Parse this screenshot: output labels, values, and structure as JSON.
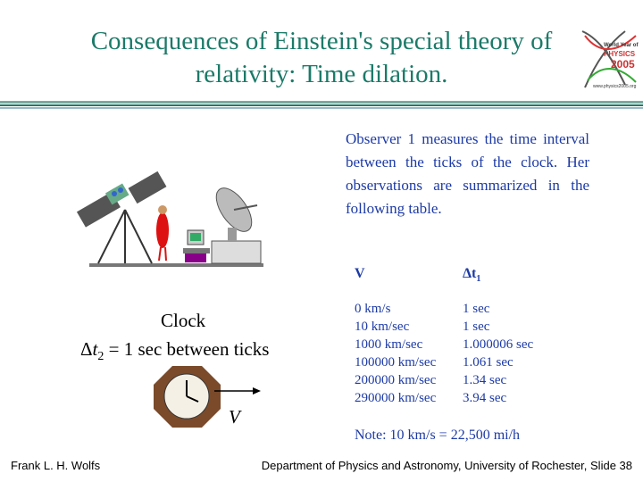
{
  "header": {
    "title_line1": "Consequences of Einstein's special theory of",
    "title_line2": "relativity: Time dilation.",
    "logo": {
      "line1": "World Year of",
      "line2": "PHYSICS",
      "line3": "2005",
      "url": "www.physics2005.org"
    }
  },
  "paragraph": "Observer 1 measures the time interval between the ticks of the clock.  Her observations are summarized in the following table.",
  "table": {
    "headers": [
      {
        "text": "V"
      },
      {
        "text": "Δt",
        "subscript": "1"
      }
    ],
    "rows": [
      [
        "0 km/s",
        "1 sec"
      ],
      [
        "10 km/sec",
        "1 sec"
      ],
      [
        "1000 km/sec",
        "1.000006 sec"
      ],
      [
        "100000 km/sec",
        "1.061 sec"
      ],
      [
        "200000 km/sec",
        "1.34 sec"
      ],
      [
        "290000 km/sec",
        "3.94 sec"
      ]
    ]
  },
  "note": "Note: 10 km/s = 22,500 mi/h",
  "clock": {
    "label": "Clock",
    "interval": {
      "symbol": "Δ",
      "variable": "t",
      "subscript": "2",
      "rest": " = 1 sec between ticks"
    },
    "velocity": "V"
  },
  "footer": {
    "left": "Frank L. H. Wolfs",
    "right": "Department of Physics and Astronomy, University of Rochester, Slide 38"
  }
}
